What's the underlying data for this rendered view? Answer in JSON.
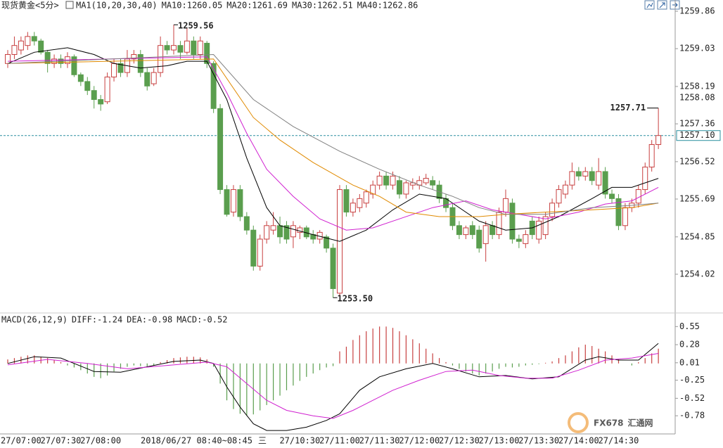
{
  "chart_data": [
    {
      "type": "candlestick",
      "title": "现货黄金<5分>",
      "indicator": "MA1(10,20,30,40)",
      "up_color": "#c84040",
      "down_color": "#5a9e4e",
      "ylim": [
        1253.16,
        1260.11
      ],
      "yticks": [
        1259.86,
        1259.03,
        1258.19,
        1257.36,
        1256.52,
        1255.69,
        1254.85,
        1254.02
      ],
      "open": [
        1258.7,
        1258.9,
        1259.0,
        1259.1,
        1259.3,
        1259.2,
        1258.95,
        1258.7,
        1258.8,
        1258.7,
        1258.85,
        1258.45,
        1258.3,
        1258.1,
        1257.9,
        1257.85,
        1258.4,
        1258.7,
        1258.5,
        1258.8,
        1258.9,
        1258.5,
        1258.25,
        1258.5,
        1259.1,
        1259.0,
        1259.1,
        1258.95,
        1259.2,
        1258.9,
        1259.15,
        1258.7,
        1257.7,
        1255.9,
        1255.4,
        1255.9,
        1255.3,
        1255.0,
        1254.2,
        1254.8,
        1255.0,
        1255.1,
        1255.1,
        1254.85,
        1254.95,
        1255.05,
        1254.9,
        1254.8,
        1254.85,
        1254.6,
        1253.6,
        1255.9,
        1255.4,
        1255.5,
        1255.6,
        1255.8,
        1256.0,
        1256.2,
        1256.0,
        1256.1,
        1255.8,
        1256.0,
        1256.0,
        1256.05,
        1256.1,
        1256.0,
        1255.7,
        1255.5,
        1255.1,
        1254.9,
        1255.1,
        1255.0,
        1254.7,
        1255.1,
        1254.9,
        1255.4,
        1255.6,
        1254.8,
        1254.7,
        1255.2,
        1254.8,
        1254.9,
        1255.3,
        1255.6,
        1255.8,
        1256.0,
        1256.3,
        1256.2,
        1256.3,
        1256.0,
        1256.3,
        1255.8,
        1255.7,
        1255.1,
        1255.5,
        1255.6,
        1255.9,
        1256.4,
        1256.9
      ],
      "high": [
        1259.0,
        1259.3,
        1259.3,
        1259.4,
        1259.4,
        1259.25,
        1259.0,
        1258.9,
        1258.9,
        1258.95,
        1258.9,
        1258.5,
        1258.4,
        1258.2,
        1258.0,
        1258.5,
        1258.8,
        1258.8,
        1259.0,
        1259.0,
        1259.0,
        1258.6,
        1258.6,
        1259.3,
        1259.2,
        1259.56,
        1259.2,
        1259.5,
        1259.3,
        1259.3,
        1259.2,
        1258.75,
        1257.8,
        1256.0,
        1256.0,
        1256.0,
        1255.4,
        1255.1,
        1254.9,
        1255.2,
        1255.4,
        1255.3,
        1255.2,
        1255.2,
        1255.1,
        1255.1,
        1255.0,
        1255.0,
        1254.9,
        1254.7,
        1256.0,
        1256.0,
        1255.7,
        1255.8,
        1255.9,
        1256.1,
        1256.3,
        1256.3,
        1256.3,
        1256.2,
        1256.1,
        1256.15,
        1256.2,
        1256.25,
        1256.2,
        1256.1,
        1255.8,
        1255.6,
        1255.2,
        1255.1,
        1255.2,
        1255.1,
        1255.2,
        1255.2,
        1255.5,
        1255.9,
        1255.7,
        1254.9,
        1255.0,
        1255.3,
        1255.3,
        1255.4,
        1255.7,
        1256.0,
        1256.1,
        1256.5,
        1256.4,
        1256.4,
        1256.4,
        1256.6,
        1256.4,
        1255.9,
        1255.8,
        1255.6,
        1255.7,
        1256.0,
        1256.5,
        1257.0,
        1257.71
      ],
      "low": [
        1258.6,
        1258.8,
        1258.9,
        1259.0,
        1259.1,
        1258.9,
        1258.5,
        1258.6,
        1258.6,
        1258.6,
        1258.4,
        1258.2,
        1258.0,
        1257.7,
        1257.65,
        1257.8,
        1258.3,
        1258.4,
        1258.4,
        1258.7,
        1258.4,
        1258.1,
        1258.2,
        1258.4,
        1258.9,
        1258.9,
        1258.8,
        1258.9,
        1258.8,
        1258.8,
        1258.6,
        1257.6,
        1255.8,
        1255.3,
        1255.3,
        1255.2,
        1254.9,
        1254.1,
        1254.1,
        1254.7,
        1254.9,
        1254.7,
        1254.7,
        1254.6,
        1254.8,
        1254.8,
        1254.7,
        1254.7,
        1254.5,
        1253.5,
        1253.5,
        1255.3,
        1255.3,
        1255.4,
        1255.5,
        1255.7,
        1255.9,
        1255.9,
        1255.9,
        1255.7,
        1255.7,
        1255.9,
        1255.9,
        1256.0,
        1255.9,
        1255.6,
        1255.4,
        1255.0,
        1254.8,
        1254.8,
        1254.8,
        1254.5,
        1254.3,
        1254.8,
        1254.8,
        1255.3,
        1254.7,
        1254.6,
        1254.6,
        1254.8,
        1254.7,
        1254.8,
        1255.2,
        1255.5,
        1255.7,
        1255.9,
        1256.1,
        1256.1,
        1256.0,
        1255.9,
        1255.7,
        1255.6,
        1255.0,
        1255.0,
        1255.4,
        1255.5,
        1255.8,
        1256.3,
        1256.8
      ],
      "close": [
        1258.9,
        1259.1,
        1259.2,
        1259.3,
        1259.2,
        1258.95,
        1258.7,
        1258.8,
        1258.7,
        1258.85,
        1258.45,
        1258.3,
        1258.1,
        1257.9,
        1257.8,
        1258.4,
        1258.7,
        1258.5,
        1258.8,
        1258.9,
        1258.5,
        1258.2,
        1258.5,
        1259.1,
        1259.0,
        1259.1,
        1258.95,
        1259.2,
        1258.9,
        1259.2,
        1258.7,
        1257.7,
        1255.9,
        1255.35,
        1255.9,
        1255.3,
        1255.0,
        1254.2,
        1254.8,
        1255.1,
        1255.1,
        1254.85,
        1254.8,
        1255.1,
        1255.05,
        1254.85,
        1254.8,
        1254.95,
        1254.6,
        1253.7,
        1255.9,
        1255.4,
        1255.6,
        1255.7,
        1255.85,
        1256.0,
        1256.2,
        1256.0,
        1256.2,
        1255.8,
        1256.05,
        1256.05,
        1256.1,
        1256.15,
        1256.0,
        1255.7,
        1255.5,
        1255.1,
        1254.9,
        1255.05,
        1254.9,
        1254.6,
        1255.1,
        1254.9,
        1255.4,
        1255.7,
        1254.8,
        1254.75,
        1254.9,
        1254.9,
        1255.2,
        1255.3,
        1255.6,
        1255.9,
        1256.0,
        1256.3,
        1256.2,
        1256.3,
        1256.1,
        1256.3,
        1255.8,
        1255.7,
        1255.1,
        1255.5,
        1255.6,
        1255.9,
        1256.4,
        1256.9,
        1257.1
      ],
      "series": [
        {
          "name": "MA10:1260.05",
          "color": "#000000",
          "x": [
            0,
            4,
            9,
            13,
            16,
            20,
            24,
            27,
            30,
            33,
            36,
            39,
            41,
            46,
            50,
            54,
            58,
            62,
            66,
            71,
            75,
            79,
            83,
            88,
            91,
            94,
            98
          ],
          "values": [
            1258.7,
            1258.95,
            1259.05,
            1258.9,
            1258.7,
            1258.6,
            1258.65,
            1258.75,
            1258.75,
            1257.9,
            1256.6,
            1255.5,
            1255.1,
            1254.9,
            1254.75,
            1255.0,
            1255.45,
            1255.8,
            1255.7,
            1255.2,
            1255.0,
            1255.05,
            1255.3,
            1255.7,
            1255.95,
            1255.95,
            1256.15
          ]
        },
        {
          "name": "MA20:1261.69",
          "color": "#d020d0",
          "x": [
            0,
            30,
            33,
            36,
            39,
            43,
            47,
            51,
            55,
            59,
            64,
            69,
            73,
            77,
            81,
            86,
            90,
            94,
            98
          ],
          "values": [
            1258.75,
            1258.85,
            1258.05,
            1257.15,
            1256.35,
            1255.75,
            1255.25,
            1255.0,
            1255.05,
            1255.25,
            1255.5,
            1255.65,
            1255.45,
            1255.35,
            1255.25,
            1255.4,
            1255.58,
            1255.65,
            1255.95
          ]
        },
        {
          "name": "MA30:1262.51",
          "color": "#e08a00",
          "x": [
            0,
            31,
            37,
            41,
            46,
            52,
            56,
            60,
            65,
            71,
            75,
            81,
            88,
            94,
            98
          ],
          "values": [
            1258.7,
            1258.8,
            1257.5,
            1257.0,
            1256.5,
            1256.0,
            1255.75,
            1255.4,
            1255.3,
            1255.3,
            1255.35,
            1255.4,
            1255.45,
            1255.5,
            1255.6
          ]
        },
        {
          "name": "MA40:1262.86",
          "color": "#808080",
          "x": [
            0,
            31,
            37,
            43,
            50,
            56,
            62,
            67,
            71,
            75,
            81,
            88,
            94,
            98
          ],
          "values": [
            1258.7,
            1258.9,
            1257.9,
            1257.3,
            1256.75,
            1256.35,
            1256.0,
            1255.75,
            1255.5,
            1255.35,
            1255.35,
            1255.5,
            1255.55,
            1255.6
          ]
        }
      ],
      "annotations": [
        {
          "x": 25,
          "value": 1259.56
        },
        {
          "x": 49,
          "value": 1253.5,
          "label": "1253.50"
        },
        {
          "x": 98,
          "value": 1257.71
        }
      ],
      "current_price": {
        "value": 1257.1,
        "label": "1257.10",
        "color": "#2a8f9f"
      },
      "price_tag": {
        "value": 1258.08,
        "color": "#e08a00"
      },
      "x_labels": [
        {
          "x": 2,
          "label": "27/07:00"
        },
        {
          "x": 8,
          "label": "27/07:30"
        },
        {
          "x": 14,
          "label": "27/08:00"
        },
        {
          "x": 44,
          "label": "27/10:30"
        },
        {
          "x": 50,
          "label": "27/11:00"
        },
        {
          "x": 56,
          "label": "27/11:30"
        },
        {
          "x": 62,
          "label": "27/12:00"
        },
        {
          "x": 68,
          "label": "27/12:30"
        },
        {
          "x": 74,
          "label": "27/13:00"
        },
        {
          "x": 80,
          "label": "27/13:30"
        },
        {
          "x": 86,
          "label": "27/14:00"
        },
        {
          "x": 92,
          "label": "27/14:30"
        }
      ]
    },
    {
      "type": "macd",
      "title": "MACD(26,12,9)",
      "ylim": [
        -1.03,
        0.7
      ],
      "yticks": [
        0.55,
        0.28,
        0.01,
        -0.25,
        -0.52,
        -0.78
      ],
      "series": [
        {
          "name": "DIFF:-1.24",
          "color": "#000000",
          "x": [
            0,
            4,
            8,
            13,
            17,
            21,
            25,
            29,
            31,
            33,
            35,
            37,
            39,
            42,
            45,
            48,
            50,
            53,
            56,
            60,
            64,
            67,
            71,
            75,
            79,
            83,
            87,
            89,
            92,
            95,
            98
          ],
          "values": [
            0.0,
            0.1,
            0.08,
            -0.12,
            -0.13,
            -0.05,
            0.03,
            0.05,
            0.0,
            -0.35,
            -0.65,
            -0.9,
            -1.0,
            -1.0,
            -0.95,
            -0.85,
            -0.75,
            -0.4,
            -0.2,
            -0.08,
            0.0,
            -0.08,
            -0.2,
            -0.18,
            -0.23,
            -0.2,
            0.05,
            0.1,
            0.05,
            0.05,
            0.3
          ]
        },
        {
          "name": "DEA:-0.98",
          "color": "#d020d0",
          "x": [
            0,
            6,
            12,
            18,
            24,
            30,
            33,
            36,
            39,
            42,
            46,
            49,
            52,
            55,
            58,
            62,
            66,
            70,
            74,
            78,
            82,
            86,
            90,
            94,
            98
          ],
          "values": [
            -0.02,
            0.06,
            0.0,
            -0.08,
            -0.03,
            0.02,
            -0.05,
            -0.3,
            -0.55,
            -0.7,
            -0.78,
            -0.82,
            -0.7,
            -0.55,
            -0.4,
            -0.25,
            -0.12,
            -0.1,
            -0.18,
            -0.22,
            -0.22,
            -0.1,
            0.05,
            0.08,
            0.15
          ]
        }
      ],
      "histogram": {
        "name": "MACD:-0.52",
        "color": "#e08a00",
        "up_color": "#c84040",
        "down_color": "#5a9e4e",
        "values": [
          0.06,
          0.08,
          0.1,
          0.12,
          0.12,
          0.1,
          0.08,
          0.05,
          0.02,
          -0.03,
          -0.06,
          -0.1,
          -0.15,
          -0.2,
          -0.22,
          -0.18,
          -0.12,
          -0.08,
          -0.05,
          -0.03,
          -0.04,
          -0.06,
          -0.03,
          0.02,
          0.05,
          0.08,
          0.09,
          0.1,
          0.1,
          0.09,
          0.06,
          -0.05,
          -0.3,
          -0.55,
          -0.68,
          -0.75,
          -0.78,
          -0.76,
          -0.7,
          -0.62,
          -0.55,
          -0.48,
          -0.4,
          -0.33,
          -0.26,
          -0.2,
          -0.15,
          -0.1,
          -0.06,
          -0.04,
          0.18,
          0.25,
          0.35,
          0.42,
          0.48,
          0.52,
          0.55,
          0.55,
          0.53,
          0.48,
          0.42,
          0.36,
          0.3,
          0.22,
          0.15,
          0.08,
          0.02,
          -0.03,
          -0.08,
          -0.12,
          -0.15,
          -0.18,
          -0.15,
          -0.12,
          -0.08,
          -0.05,
          -0.06,
          -0.05,
          -0.03,
          -0.02,
          -0.01,
          0.01,
          0.03,
          0.08,
          0.12,
          0.18,
          0.24,
          0.28,
          0.26,
          0.22,
          0.18,
          0.12,
          0.06,
          0.0,
          -0.03,
          0.02,
          0.08,
          0.15,
          0.22
        ]
      }
    }
  ],
  "tooltip": {
    "date": "2018/06/27 08:40~08:45",
    "weekday": "三"
  },
  "watermark": {
    "brand": "FX678",
    "name": "汇通网"
  }
}
